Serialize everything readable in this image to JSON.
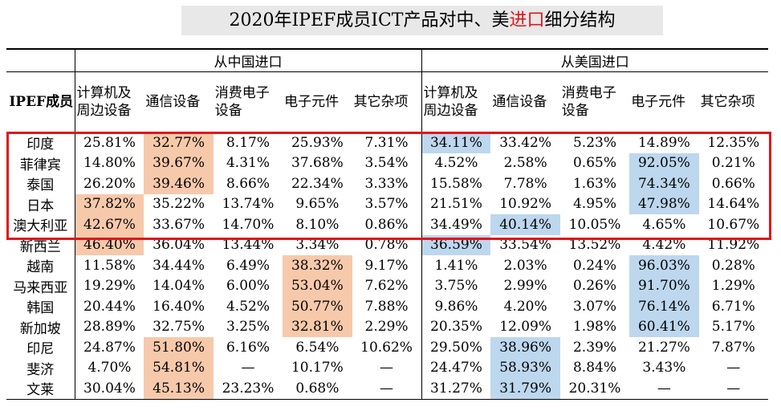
{
  "title": {
    "pre": "2020年IPEF成员ICT产品对中、美",
    "highlight": "进口",
    "post": "细分结构"
  },
  "groups": [
    "从中国进口",
    "从美国进口"
  ],
  "row_header": "IPEF成员",
  "columns": [
    "计算机及周边设备",
    "通信设备",
    "消费电子设备",
    "电子元件",
    "其它杂项"
  ],
  "highlight_colors": {
    "china": "#f7c9ab",
    "us": "#bdd7ee",
    "box": "#e0161b"
  },
  "rows": [
    {
      "name": "印度",
      "cn": [
        "25.81%",
        "32.77%",
        "8.17%",
        "25.93%",
        "7.31%"
      ],
      "us": [
        "34.11%",
        "33.42%",
        "5.23%",
        "14.89%",
        "12.35%"
      ],
      "cn_hl": 1,
      "us_hl": 0
    },
    {
      "name": "菲律宾",
      "cn": [
        "14.80%",
        "39.67%",
        "4.31%",
        "37.68%",
        "3.54%"
      ],
      "us": [
        "4.52%",
        "2.58%",
        "0.65%",
        "92.05%",
        "0.21%"
      ],
      "cn_hl": 1,
      "us_hl": 3
    },
    {
      "name": "泰国",
      "cn": [
        "26.20%",
        "39.46%",
        "8.66%",
        "22.34%",
        "3.33%"
      ],
      "us": [
        "15.58%",
        "7.78%",
        "1.63%",
        "74.34%",
        "0.66%"
      ],
      "cn_hl": 1,
      "us_hl": 3
    },
    {
      "name": "日本",
      "cn": [
        "37.82%",
        "35.22%",
        "13.74%",
        "9.65%",
        "3.57%"
      ],
      "us": [
        "21.51%",
        "10.92%",
        "4.95%",
        "47.98%",
        "14.64%"
      ],
      "cn_hl": 0,
      "us_hl": 3
    },
    {
      "name": "澳大利亚",
      "cn": [
        "42.67%",
        "33.67%",
        "14.70%",
        "8.10%",
        "0.86%"
      ],
      "us": [
        "34.49%",
        "40.14%",
        "10.05%",
        "4.65%",
        "10.67%"
      ],
      "cn_hl": 0,
      "us_hl": 1
    },
    {
      "name": "新西兰",
      "cn": [
        "46.40%",
        "36.04%",
        "13.44%",
        "3.34%",
        "0.78%"
      ],
      "us": [
        "36.59%",
        "33.54%",
        "13.52%",
        "4.42%",
        "11.92%"
      ],
      "cn_hl": 0,
      "us_hl": 0
    },
    {
      "name": "越南",
      "cn": [
        "11.58%",
        "34.44%",
        "6.49%",
        "38.32%",
        "9.17%"
      ],
      "us": [
        "1.41%",
        "2.03%",
        "0.24%",
        "96.03%",
        "0.28%"
      ],
      "cn_hl": 3,
      "us_hl": 3
    },
    {
      "name": "马来西亚",
      "cn": [
        "19.29%",
        "14.04%",
        "6.00%",
        "53.04%",
        "7.62%"
      ],
      "us": [
        "3.75%",
        "2.99%",
        "0.26%",
        "91.70%",
        "1.29%"
      ],
      "cn_hl": 3,
      "us_hl": 3
    },
    {
      "name": "韩国",
      "cn": [
        "20.44%",
        "16.40%",
        "4.52%",
        "50.77%",
        "7.88%"
      ],
      "us": [
        "9.86%",
        "4.20%",
        "3.07%",
        "76.14%",
        "6.71%"
      ],
      "cn_hl": 3,
      "us_hl": 3
    },
    {
      "name": "新加坡",
      "cn": [
        "28.89%",
        "32.75%",
        "3.25%",
        "32.81%",
        "2.29%"
      ],
      "us": [
        "20.35%",
        "12.09%",
        "1.98%",
        "60.41%",
        "5.17%"
      ],
      "cn_hl": 3,
      "us_hl": 3
    },
    {
      "name": "印尼",
      "cn": [
        "24.87%",
        "51.80%",
        "6.16%",
        "6.54%",
        "10.62%"
      ],
      "us": [
        "29.50%",
        "38.96%",
        "2.39%",
        "21.27%",
        "7.87%"
      ],
      "cn_hl": 1,
      "us_hl": 1
    },
    {
      "name": "斐济",
      "cn": [
        "4.70%",
        "54.81%",
        "—",
        "10.17%",
        "—"
      ],
      "us": [
        "24.47%",
        "58.93%",
        "8.84%",
        "3.43%",
        "—"
      ],
      "cn_hl": 1,
      "us_hl": 1
    },
    {
      "name": "文莱",
      "cn": [
        "30.04%",
        "45.13%",
        "23.23%",
        "0.68%",
        "—"
      ],
      "us": [
        "31.27%",
        "31.79%",
        "20.31%",
        "—",
        "—"
      ],
      "cn_hl": 1,
      "us_hl": 1
    }
  ]
}
